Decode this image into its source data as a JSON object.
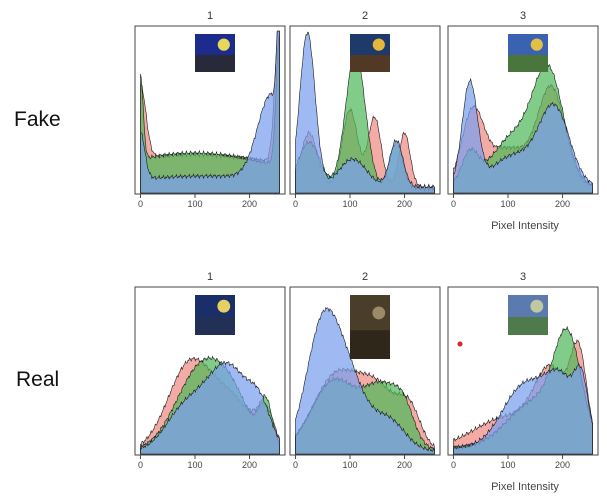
{
  "rows": [
    {
      "label": "Fake",
      "panels": [
        {
          "title": "1",
          "thumb_colors": [
            "#1b2c8c",
            "#e8d85a",
            "#2a2a2a"
          ],
          "series": [
            {
              "color": "#f08a82",
              "peaks": [
                [
                  0,
                  10,
                  0.48
                ],
                [
                  255,
                  8,
                  0.95
                ],
                [
                  100,
                  160,
                  0.15
                ]
              ],
              "base": 0.1
            },
            {
              "color": "#4fb85a",
              "peaks": [
                [
                  0,
                  5,
                  0.55
                ],
                [
                  255,
                  6,
                  0.85
                ],
                [
                  100,
                  120,
                  0.14
                ]
              ],
              "base": 0.12
            },
            {
              "color": "#7aa0ef",
              "peaks": [
                [
                  0,
                  8,
                  0.3
                ],
                [
                  240,
                  25,
                  0.55
                ],
                [
                  255,
                  4,
                  1.0
                ],
                [
                  120,
                  140,
                  0.06
                ]
              ],
              "base": 0.05
            }
          ]
        },
        {
          "title": "2",
          "thumb_colors": [
            "#1d3a6a",
            "#e4b83a",
            "#5a3a1a"
          ],
          "series": [
            {
              "color": "#f08a82",
              "peaks": [
                [
                  100,
                  14,
                  0.5
                ],
                [
                  145,
                  12,
                  0.45
                ],
                [
                  200,
                  10,
                  0.35
                ],
                [
                  25,
                  15,
                  0.35
                ]
              ],
              "base": 0.04
            },
            {
              "color": "#4fb85a",
              "peaks": [
                [
                  110,
                  18,
                  0.88
                ],
                [
                  25,
                  20,
                  0.3
                ],
                [
                  185,
                  12,
                  0.3
                ]
              ],
              "base": 0.03
            },
            {
              "color": "#7aa0ef",
              "peaks": [
                [
                  22,
                  14,
                  1.0
                ],
                [
                  105,
                  25,
                  0.18
                ],
                [
                  185,
                  12,
                  0.3
                ]
              ],
              "base": 0.04
            }
          ]
        },
        {
          "title": "3",
          "thumb_colors": [
            "#3a62b0",
            "#e2c044",
            "#4e7a2a"
          ],
          "series": [
            {
              "color": "#f08a82",
              "peaks": [
                [
                  35,
                  20,
                  0.45
                ],
                [
                  180,
                  25,
                  0.62
                ],
                [
                  100,
                  40,
                  0.25
                ]
              ],
              "base": 0.04
            },
            {
              "color": "#4fb85a",
              "peaks": [
                [
                  175,
                  28,
                  0.7
                ],
                [
                  110,
                  40,
                  0.32
                ],
                [
                  30,
                  15,
                  0.2
                ]
              ],
              "base": 0.04
            },
            {
              "color": "#7aa0ef",
              "peaks": [
                [
                  30,
                  14,
                  0.66
                ],
                [
                  185,
                  28,
                  0.5
                ],
                [
                  110,
                  40,
                  0.2
                ]
              ],
              "base": 0.04
            }
          ]
        }
      ]
    },
    {
      "label": "Real",
      "panels": [
        {
          "title": "1",
          "thumb_colors": [
            "#1a2e6a",
            "#e8d060",
            "#233050"
          ],
          "series": [
            {
              "color": "#f08a82",
              "peaks": [
                [
                  90,
                  40,
                  0.55
                ],
                [
                  170,
                  40,
                  0.3
                ],
                [
                  230,
                  15,
                  0.2
                ]
              ],
              "base": 0.02
            },
            {
              "color": "#4fb85a",
              "peaks": [
                [
                  110,
                  45,
                  0.52
                ],
                [
                  230,
                  12,
                  0.28
                ],
                [
                  170,
                  35,
                  0.25
                ]
              ],
              "base": 0.02
            },
            {
              "color": "#7aa0ef",
              "peaks": [
                [
                  160,
                  40,
                  0.55
                ],
                [
                  80,
                  35,
                  0.25
                ],
                [
                  220,
                  20,
                  0.2
                ]
              ],
              "base": 0.02
            }
          ]
        },
        {
          "title": "2",
          "thumb_colors": [
            "#4a3e2a",
            "#9a8a68",
            "#2a2418"
          ],
          "series": [
            {
              "color": "#f08a82",
              "peaks": [
                [
                  70,
                  40,
                  0.45
                ],
                [
                  150,
                  40,
                  0.4
                ],
                [
                  210,
                  20,
                  0.2
                ]
              ],
              "base": 0.02
            },
            {
              "color": "#4fb85a",
              "peaks": [
                [
                  70,
                  40,
                  0.45
                ],
                [
                  160,
                  35,
                  0.4
                ],
                [
                  200,
                  18,
                  0.15
                ]
              ],
              "base": 0.02
            },
            {
              "color": "#7aa0ef",
              "peaks": [
                [
                  50,
                  30,
                  0.8
                ],
                [
                  100,
                  30,
                  0.4
                ],
                [
                  170,
                  30,
                  0.2
                ]
              ],
              "base": 0.02
            }
          ]
        },
        {
          "title": "3",
          "thumb_colors": [
            "#5a7ab0",
            "#c0c8a0",
            "#4e7a3a"
          ],
          "series": [
            {
              "color": "#f08a82",
              "peaks": [
                [
                  180,
                  30,
                  0.45
                ],
                [
                  230,
                  15,
                  0.55
                ],
                [
                  100,
                  60,
                  0.2
                ]
              ],
              "base": 0.04
            },
            {
              "color": "#4fb85a",
              "peaks": [
                [
                  210,
                  25,
                  0.62
                ],
                [
                  150,
                  50,
                  0.3
                ]
              ],
              "base": 0.04
            },
            {
              "color": "#7aa0ef",
              "peaks": [
                [
                  130,
                  40,
                  0.4
                ],
                [
                  200,
                  30,
                  0.4
                ],
                [
                  235,
                  12,
                  0.3
                ]
              ],
              "base": 0.04
            }
          ]
        }
      ]
    }
  ],
  "chart_data": {
    "type": "area",
    "xlabel": "Pixel Intensity",
    "ylabel": "",
    "xlim": [
      -10,
      265
    ],
    "x_ticks": [
      0,
      100,
      200
    ],
    "tick_labels": [
      "0",
      "100",
      "200"
    ],
    "grid": false,
    "legend": "none"
  }
}
